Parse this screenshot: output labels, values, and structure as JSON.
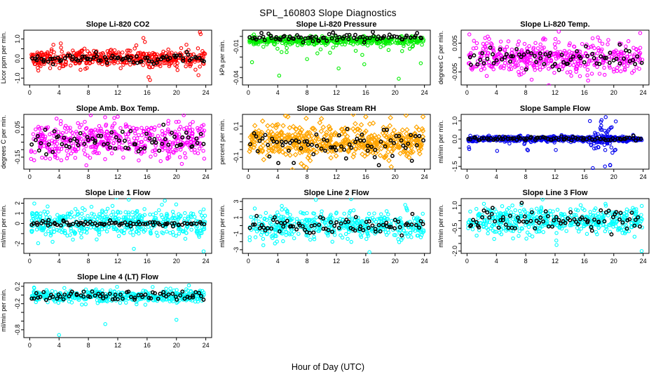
{
  "page": {
    "title": "SPL_160803  Slope Diagnostics",
    "xlabel": "Hour of Day (UTC)"
  },
  "chart_data": {
    "type": "scatter",
    "title": "SPL_160803  Slope Diagnostics",
    "xlabel": "Hour of Day (UTC)",
    "xlim": [
      -0.8,
      24.8
    ],
    "x_ticks": [
      0,
      4,
      8,
      12,
      16,
      20,
      24
    ],
    "grid": false,
    "legend": "none",
    "point_style": {
      "raw_shape": "open-circle",
      "overlay_shape": "open-circle",
      "overlay_color": "#000000"
    },
    "panels": [
      {
        "title": "Slope Li-820 CO2",
        "ylabel": "Licor ppm per min.",
        "color": "#FF0000",
        "symbol": "circle",
        "ylim": [
          -1.35,
          1.45
        ],
        "yticks": [
          {
            "v": 1.0,
            "label": "1.0"
          },
          {
            "v": 0.5,
            "label": ""
          },
          {
            "v": 0.0,
            "label": "0.0"
          },
          {
            "v": -0.5,
            "label": ""
          },
          {
            "v": -1.0,
            "label": "-1.0"
          }
        ],
        "series": [
          {
            "name": "raw",
            "n": 460,
            "mean": 0.02,
            "sd": 0.22,
            "seed": 101,
            "tail": {
              "frac": 0.05,
              "scale": 0.5,
              "side": 0
            }
          },
          {
            "name": "hourly",
            "n": 80,
            "mean": 0.0,
            "sd": 0.12,
            "seed": 102,
            "even": true,
            "color": "#000000"
          }
        ],
        "outliers": [
          [
            15.5,
            1.05
          ],
          [
            15.7,
            0.85
          ],
          [
            23.2,
            1.35
          ],
          [
            23.3,
            1.25
          ],
          [
            16.2,
            -0.95
          ],
          [
            16.4,
            -1.1
          ],
          [
            23.0,
            -0.85
          ]
        ]
      },
      {
        "title": "Slope Li-820 Pressure",
        "ylabel": "kPa per min.",
        "color": "#00EE00",
        "symbol": "circle",
        "ylim": [
          -0.047,
          0.006
        ],
        "yticks": [
          {
            "v": 0.0,
            "label": ""
          },
          {
            "v": -0.01,
            "label": "-0.01"
          },
          {
            "v": -0.02,
            "label": ""
          },
          {
            "v": -0.03,
            "label": ""
          },
          {
            "v": -0.04,
            "label": "-0.04"
          }
        ],
        "series": [
          {
            "name": "raw",
            "n": 460,
            "mean": -0.004,
            "sd": 0.002,
            "seed": 201,
            "tail": {
              "frac": 0.05,
              "scale": 0.011,
              "side": -1
            }
          },
          {
            "name": "hourly",
            "n": 80,
            "mean": -0.001,
            "sd": 0.0022,
            "seed": 202,
            "even": true,
            "color": "#000000"
          }
        ],
        "outliers": [
          [
            0.5,
            -0.025
          ],
          [
            4.2,
            -0.038
          ],
          [
            8.0,
            -0.022
          ],
          [
            12.3,
            -0.031
          ],
          [
            15.8,
            -0.027
          ],
          [
            20.5,
            -0.041
          ],
          [
            23.5,
            -0.026
          ]
        ]
      },
      {
        "title": "Slope Li-820 Temp.",
        "ylabel": "degrees C per min.",
        "color": "#FF00FF",
        "symbol": "circle",
        "ylim": [
          -0.0095,
          0.0095
        ],
        "yticks": [
          {
            "v": 0.005,
            "label": "0.005"
          },
          {
            "v": 0.0,
            "label": ""
          },
          {
            "v": -0.005,
            "label": "-0.005"
          }
        ],
        "series": [
          {
            "name": "raw",
            "n": 470,
            "mean": 0.0,
            "sd": 0.0026,
            "seed": 301,
            "tail": {
              "frac": 0.03,
              "scale": 0.004,
              "side": 0
            }
          },
          {
            "name": "hourly",
            "n": 70,
            "mean": 0.0,
            "sd": 0.002,
            "seed": 302,
            "even": true,
            "color": "#000000"
          }
        ],
        "outliers": [
          [
            12.5,
            0.009
          ],
          [
            16.5,
            -0.008
          ],
          [
            23.6,
            0.0085
          ]
        ]
      },
      {
        "title": "Slope Amb. Box Temp.",
        "ylabel": "degrees C per min.",
        "color": "#FF00FF",
        "symbol": "circle",
        "ylim": [
          -0.23,
          0.135
        ],
        "yticks": [
          {
            "v": 0.05,
            "label": "0.05"
          },
          {
            "v": 0.0,
            "label": ""
          },
          {
            "v": -0.05,
            "label": ""
          },
          {
            "v": -0.1,
            "label": ""
          },
          {
            "v": -0.15,
            "label": "-0.15"
          }
        ],
        "series": [
          {
            "name": "raw",
            "n": 470,
            "mean": -0.04,
            "sd": 0.062,
            "seed": 401,
            "tail": {
              "frac": 0.02,
              "scale": 0.07,
              "side": 0
            }
          },
          {
            "name": "hourly",
            "n": 70,
            "mean": -0.045,
            "sd": 0.05,
            "seed": 402,
            "even": true,
            "color": "#000000"
          }
        ],
        "outliers": [
          [
            12.0,
            0.12
          ],
          [
            21.0,
            0.13
          ]
        ]
      },
      {
        "title": "Slope Gas Stream RH",
        "ylabel": "percent per min.",
        "color": "#FFA500",
        "symbol": "diamond",
        "ylim": [
          -0.175,
          0.175
        ],
        "yticks": [
          {
            "v": 0.1,
            "label": "0.1"
          },
          {
            "v": 0.05,
            "label": ""
          },
          {
            "v": 0.0,
            "label": ""
          },
          {
            "v": -0.05,
            "label": ""
          },
          {
            "v": -0.1,
            "label": "-0.1"
          }
        ],
        "series": [
          {
            "name": "raw",
            "n": 470,
            "mean": 0.0,
            "sd": 0.055,
            "seed": 501,
            "tail": {
              "frac": 0.03,
              "scale": 0.06,
              "side": 0
            }
          },
          {
            "name": "hourly",
            "n": 75,
            "mean": -0.005,
            "sd": 0.05,
            "seed": 502,
            "even": true,
            "color": "#000000"
          }
        ],
        "outliers": [
          [
            16.0,
            0.16
          ],
          [
            21.5,
            0.17
          ],
          [
            23.8,
            0.16
          ]
        ]
      },
      {
        "title": "Slope Sample Flow",
        "ylabel": "ml/min per min.",
        "color": "#0000EE",
        "symbol": "circle",
        "ylim": [
          -1.65,
          1.35
        ],
        "yticks": [
          {
            "v": 1.0,
            "label": "1.0"
          },
          {
            "v": 0.5,
            "label": ""
          },
          {
            "v": 0.0,
            "label": "0.0"
          },
          {
            "v": -0.5,
            "label": ""
          },
          {
            "v": -1.0,
            "label": ""
          },
          {
            "v": -1.5,
            "label": "-1.5"
          }
        ],
        "series": [
          {
            "name": "raw",
            "n": 500,
            "mean": 0.0,
            "sd": 0.075,
            "seed": 601,
            "flare": {
              "x0": 16.4,
              "x1": 20.3,
              "n": 55,
              "sd": 0.55,
              "seed": 603
            }
          },
          {
            "name": "hourly",
            "n": 80,
            "mean": 0.02,
            "sd": 0.06,
            "seed": 602,
            "even": true,
            "color": "#000000"
          }
        ],
        "outliers": [
          [
            0.25,
            -0.45
          ],
          [
            0.3,
            -0.55
          ],
          [
            4.1,
            -0.65
          ],
          [
            8.2,
            -0.58
          ],
          [
            8.3,
            -0.62
          ],
          [
            12.1,
            -0.6
          ],
          [
            18.9,
            1.2
          ],
          [
            18.8,
            -1.5
          ],
          [
            19.5,
            -1.42
          ]
        ]
      },
      {
        "title": "Slope Line 1 Flow",
        "ylabel": "ml/min per min.",
        "color": "#00FFFF",
        "symbol": "circle",
        "ylim": [
          -2.95,
          2.45
        ],
        "yticks": [
          {
            "v": 2,
            "label": "2"
          },
          {
            "v": 1,
            "label": "1"
          },
          {
            "v": 0,
            "label": "0"
          },
          {
            "v": -1,
            "label": ""
          },
          {
            "v": -2,
            "label": "-2"
          }
        ],
        "series": [
          {
            "name": "raw",
            "n": 470,
            "mean": 0.0,
            "sd": 0.7,
            "seed": 701,
            "tail": {
              "frac": 0.03,
              "scale": 1.0,
              "side": 0
            }
          },
          {
            "name": "hourly",
            "n": 80,
            "mean": 0.0,
            "sd": 0.13,
            "seed": 702,
            "even": true,
            "color": "#000000"
          }
        ],
        "outliers": [
          [
            13.5,
            2.35
          ],
          [
            23.7,
            -2.75
          ],
          [
            14.2,
            -2.5
          ]
        ]
      },
      {
        "title": "Slope Line 2 Flow",
        "ylabel": "ml/min per min.",
        "color": "#00FFFF",
        "symbol": "circle",
        "ylim": [
          -3.45,
          3.35
        ],
        "yticks": [
          {
            "v": 3,
            "label": "3"
          },
          {
            "v": 2,
            "label": ""
          },
          {
            "v": 1,
            "label": "1"
          },
          {
            "v": 0,
            "label": ""
          },
          {
            "v": -1,
            "label": "-1"
          },
          {
            "v": -2,
            "label": ""
          },
          {
            "v": -3,
            "label": "-3"
          }
        ],
        "series": [
          {
            "name": "raw",
            "n": 470,
            "mean": 0.0,
            "sd": 0.85,
            "seed": 801,
            "tail": {
              "frac": 0.03,
              "scale": 1.2,
              "side": 0
            }
          },
          {
            "name": "hourly",
            "n": 80,
            "mean": 0.0,
            "sd": 0.6,
            "seed": 802,
            "even": true,
            "color": "#000000"
          }
        ],
        "outliers": [
          [
            9.2,
            3.2
          ],
          [
            14.0,
            3.3
          ],
          [
            16.5,
            -3.3
          ]
        ]
      },
      {
        "title": "Slope Line 3 Flow",
        "ylabel": "ml/min per min.",
        "color": "#00FFFF",
        "symbol": "circle",
        "ylim": [
          -2.15,
          1.45
        ],
        "yticks": [
          {
            "v": 1.0,
            "label": "1.0"
          },
          {
            "v": 0.5,
            "label": ""
          },
          {
            "v": 0.0,
            "label": ""
          },
          {
            "v": -0.5,
            "label": "-0.5"
          },
          {
            "v": -1.0,
            "label": ""
          },
          {
            "v": -1.5,
            "label": ""
          },
          {
            "v": -2.0,
            "label": "-2.0"
          }
        ],
        "series": [
          {
            "name": "raw",
            "n": 470,
            "mean": 0.0,
            "sd": 0.42,
            "seed": 901,
            "tail": {
              "frac": 0.03,
              "scale": 0.6,
              "side": 0
            }
          },
          {
            "name": "hourly",
            "n": 80,
            "mean": 0.0,
            "sd": 0.35,
            "seed": 902,
            "even": true,
            "color": "#000000"
          }
        ],
        "outliers": [
          [
            10.3,
            1.4
          ],
          [
            23.8,
            -2.0
          ],
          [
            12.2,
            -1.6
          ]
        ]
      },
      {
        "title": "Slope Line 4 (LT) Flow",
        "ylabel": "ml/min per min.",
        "color": "#00FFFF",
        "symbol": "circle",
        "ylim": [
          -0.98,
          0.28
        ],
        "yticks": [
          {
            "v": 0.2,
            "label": "0.2"
          },
          {
            "v": 0.0,
            "label": ""
          },
          {
            "v": -0.2,
            "label": "-0.2"
          },
          {
            "v": -0.4,
            "label": ""
          },
          {
            "v": -0.6,
            "label": ""
          },
          {
            "v": -0.8,
            "label": "-0.8"
          }
        ],
        "series": [
          {
            "name": "raw",
            "n": 450,
            "mean": -0.02,
            "sd": 0.07,
            "seed": 1001
          },
          {
            "name": "hourly",
            "n": 72,
            "mean": -0.03,
            "sd": 0.055,
            "seed": 1002,
            "even": true,
            "color": "#000000"
          }
        ],
        "outliers": [
          [
            4.0,
            -0.92
          ],
          [
            10.3,
            -0.67
          ],
          [
            20.0,
            -0.57
          ],
          [
            21.7,
            0.22
          ]
        ]
      }
    ]
  }
}
